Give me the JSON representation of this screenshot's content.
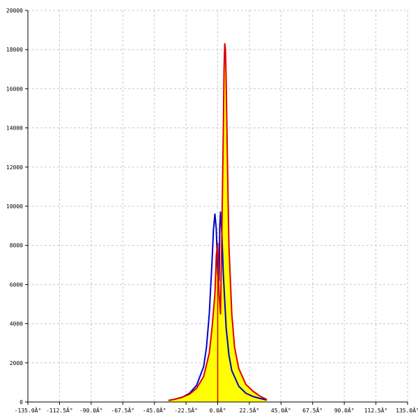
{
  "chart_data": {
    "type": "area",
    "title": "",
    "xlabel": "",
    "ylabel": "",
    "xlim": [
      -135,
      135
    ],
    "ylim": [
      0,
      20000
    ],
    "grid": true,
    "legend": "none",
    "x_ticks": [
      {
        "value": -135,
        "label": "-135.0Â°"
      },
      {
        "value": -112.5,
        "label": "-112.5Â°"
      },
      {
        "value": -90,
        "label": "-90.0Â°"
      },
      {
        "value": -67.5,
        "label": "-67.5Â°"
      },
      {
        "value": -45,
        "label": "-45.0Â°"
      },
      {
        "value": -22.5,
        "label": "-22.5Â°"
      },
      {
        "value": 0,
        "label": "0.0Â°"
      },
      {
        "value": 22.5,
        "label": "22.5Â°"
      },
      {
        "value": 45,
        "label": "45.0Â°"
      },
      {
        "value": 67.5,
        "label": "67.5Â°"
      },
      {
        "value": 90,
        "label": "90.0Â°"
      },
      {
        "value": 112.5,
        "label": "112.5Â°"
      },
      {
        "value": 135,
        "label": "135.0Â°"
      }
    ],
    "y_ticks": [
      {
        "value": 0,
        "label": "0"
      },
      {
        "value": 2000,
        "label": "2000"
      },
      {
        "value": 4000,
        "label": "4000"
      },
      {
        "value": 6000,
        "label": "6000"
      },
      {
        "value": 8000,
        "label": "8000"
      },
      {
        "value": 10000,
        "label": "10000"
      },
      {
        "value": 12000,
        "label": "12000"
      },
      {
        "value": 14000,
        "label": "14000"
      },
      {
        "value": 16000,
        "label": "16000"
      },
      {
        "value": 18000,
        "label": "18000"
      },
      {
        "value": 20000,
        "label": "20000"
      }
    ],
    "series": [
      {
        "color": "#ffff00",
        "style": "filled-area",
        "points": [
          [
            -35,
            80
          ],
          [
            -30,
            150
          ],
          [
            -25,
            250
          ],
          [
            -20,
            400
          ],
          [
            -15,
            700
          ],
          [
            -10,
            1300
          ],
          [
            -6,
            2500
          ],
          [
            -4,
            3800
          ],
          [
            -2,
            5500
          ],
          [
            -1,
            7500
          ],
          [
            0,
            8100
          ],
          [
            1,
            5500
          ],
          [
            2,
            4500
          ],
          [
            3,
            9000
          ],
          [
            4,
            14000
          ],
          [
            4.5,
            17000
          ],
          [
            5,
            18300
          ],
          [
            5.5,
            18000
          ],
          [
            6,
            16500
          ],
          [
            7,
            12000
          ],
          [
            8,
            8000
          ],
          [
            10,
            4500
          ],
          [
            12,
            2800
          ],
          [
            15,
            1700
          ],
          [
            20,
            900
          ],
          [
            25,
            550
          ],
          [
            30,
            300
          ],
          [
            35,
            120
          ]
        ]
      },
      {
        "color": "#0000cc",
        "style": "line",
        "points": [
          [
            -35,
            80
          ],
          [
            -30,
            150
          ],
          [
            -25,
            250
          ],
          [
            -20,
            450
          ],
          [
            -15,
            850
          ],
          [
            -10,
            1800
          ],
          [
            -8,
            2800
          ],
          [
            -6,
            4500
          ],
          [
            -4,
            7200
          ],
          [
            -3,
            8800
          ],
          [
            -2,
            9600
          ],
          [
            -1,
            8800
          ],
          [
            0,
            6500
          ],
          [
            1,
            6200
          ],
          [
            1.5,
            9000
          ],
          [
            2,
            9700
          ],
          [
            3,
            8500
          ],
          [
            4,
            6500
          ],
          [
            6,
            3800
          ],
          [
            8,
            2400
          ],
          [
            10,
            1600
          ],
          [
            15,
            800
          ],
          [
            20,
            450
          ],
          [
            25,
            280
          ],
          [
            30,
            180
          ],
          [
            35,
            100
          ]
        ]
      },
      {
        "color": "#dd0000",
        "style": "line",
        "points": [
          [
            -35,
            80
          ],
          [
            -30,
            150
          ],
          [
            -25,
            250
          ],
          [
            -20,
            400
          ],
          [
            -15,
            700
          ],
          [
            -10,
            1300
          ],
          [
            -6,
            2500
          ],
          [
            -4,
            3800
          ],
          [
            -2,
            5500
          ],
          [
            -1,
            7500
          ],
          [
            0,
            8100
          ],
          [
            1,
            5500
          ],
          [
            2,
            4500
          ],
          [
            3,
            9000
          ],
          [
            4,
            14000
          ],
          [
            4.5,
            17000
          ],
          [
            5,
            18300
          ],
          [
            5.5,
            18000
          ],
          [
            6,
            16500
          ],
          [
            7,
            12000
          ],
          [
            8,
            8000
          ],
          [
            10,
            4500
          ],
          [
            12,
            2800
          ],
          [
            15,
            1700
          ],
          [
            20,
            900
          ],
          [
            25,
            550
          ],
          [
            30,
            300
          ],
          [
            35,
            120
          ]
        ]
      }
    ],
    "vertical_markers": [
      {
        "x": 0,
        "color": "#dd0000"
      }
    ]
  }
}
